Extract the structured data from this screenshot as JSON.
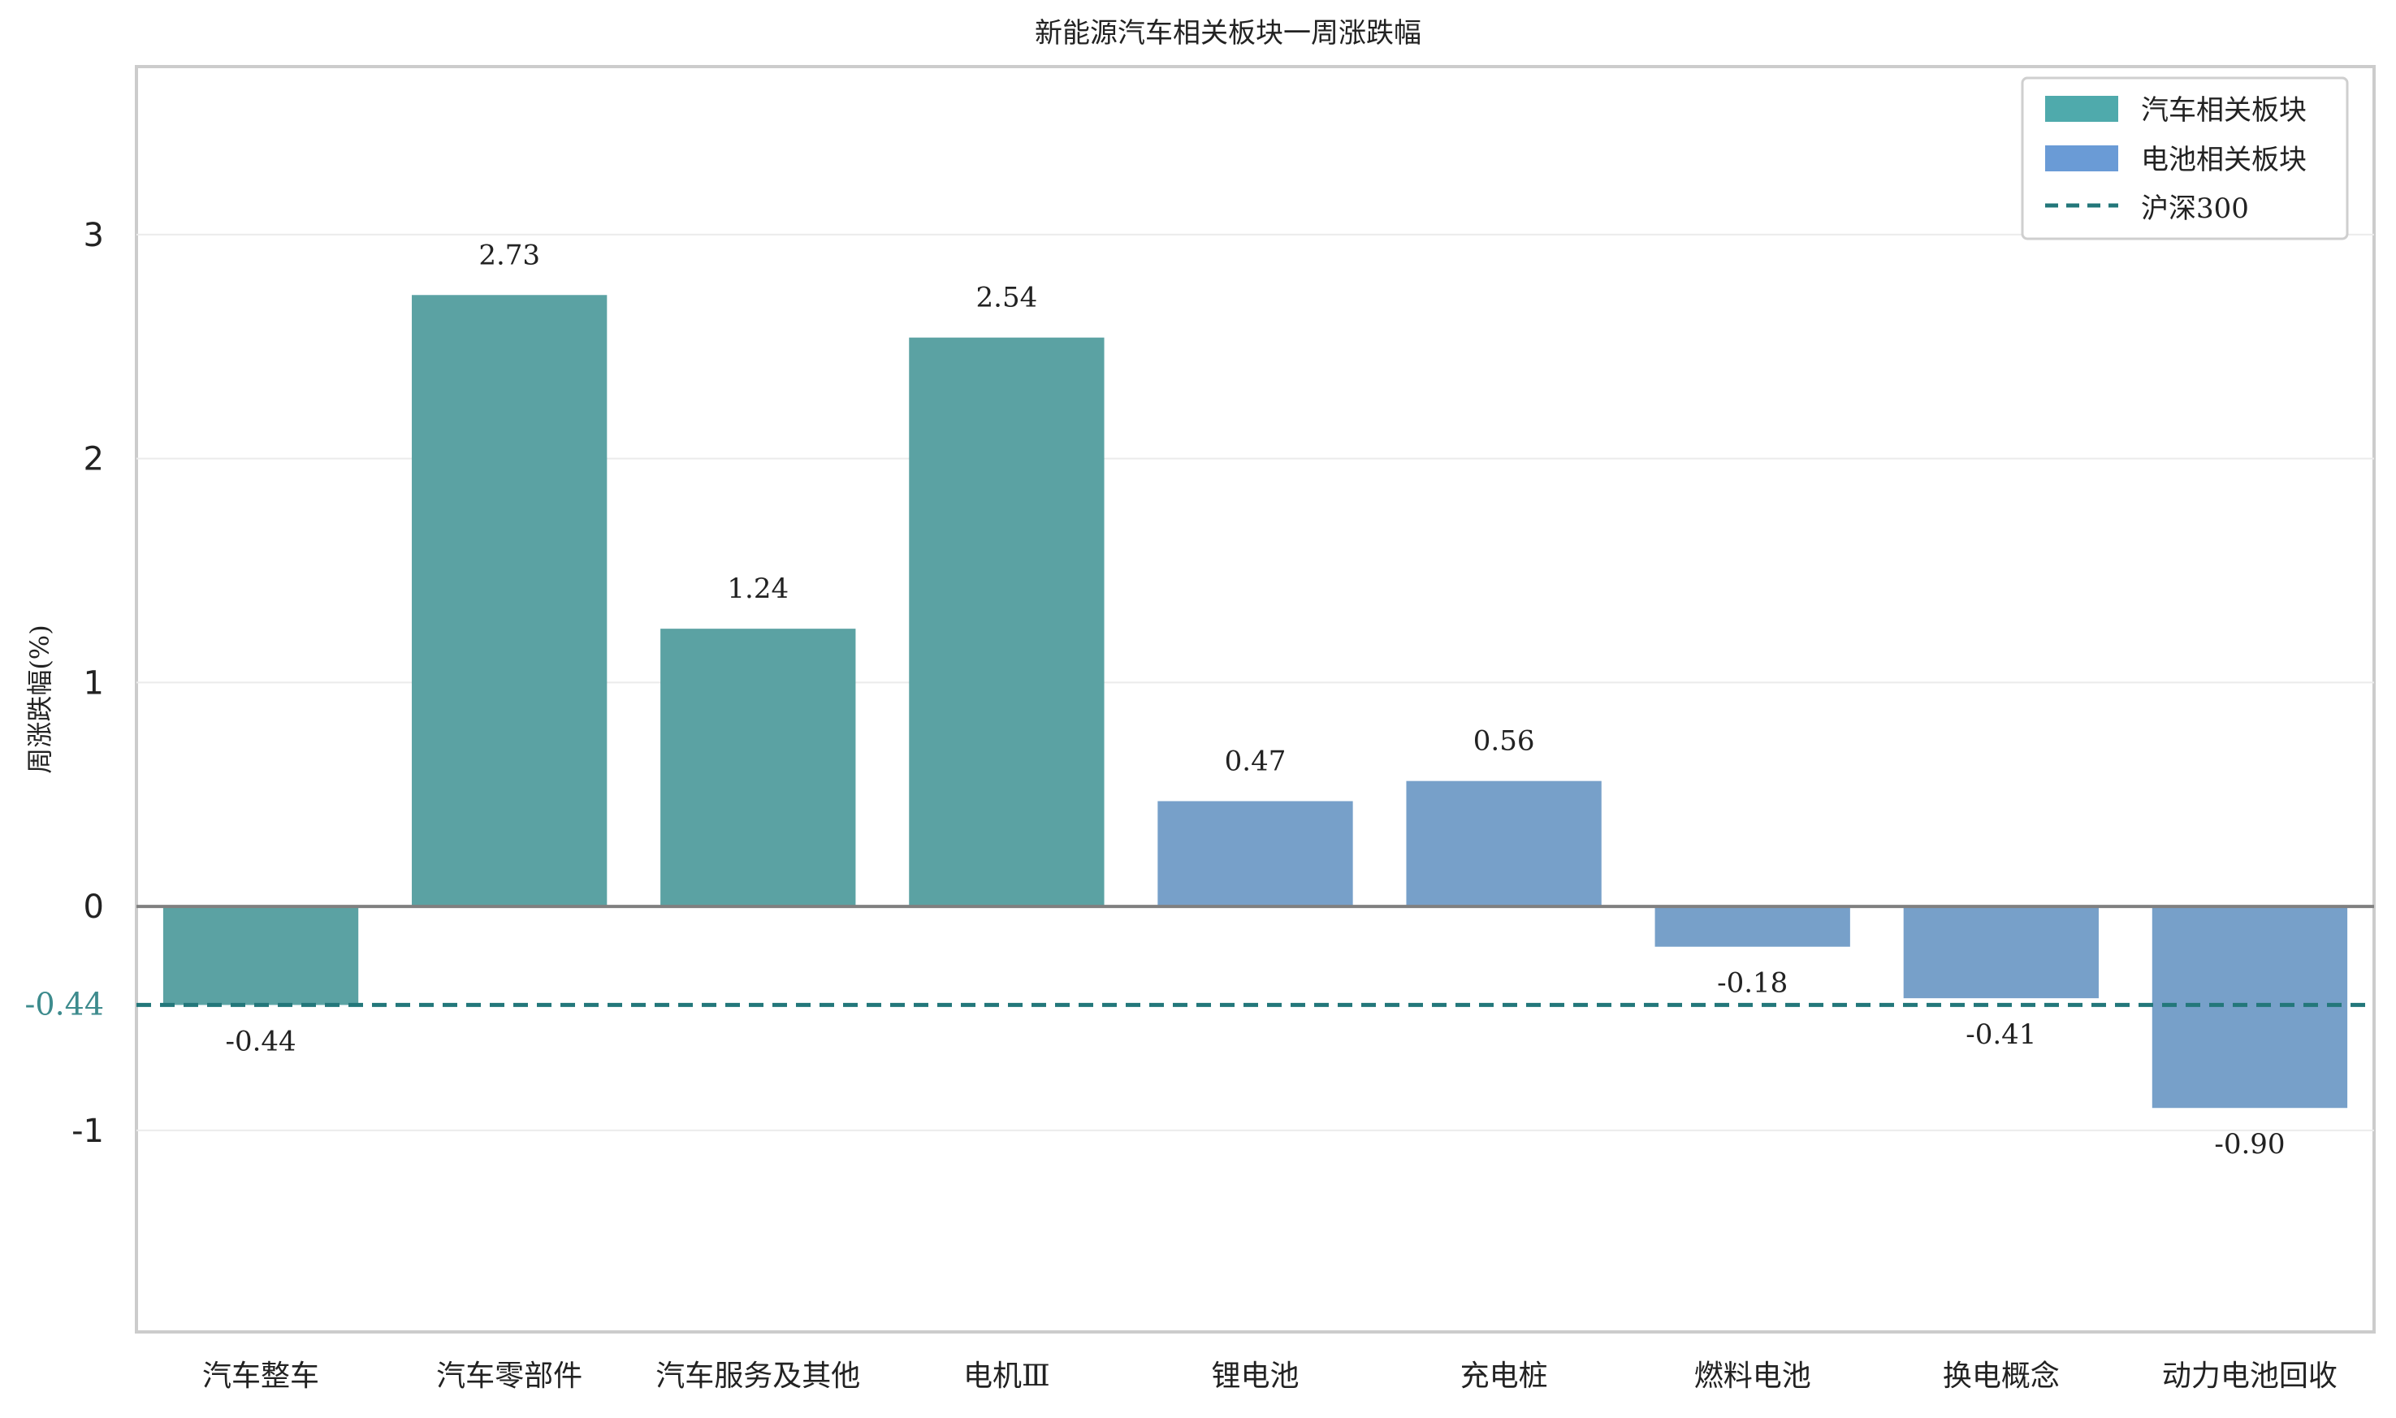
{
  "chart_data": {
    "type": "bar",
    "title": "新能源汽车相关板块一周涨跌幅",
    "ylabel": "周涨跌幅(%)",
    "xlabel": "",
    "ylim": [
      -1.9,
      3.75
    ],
    "yticks": [
      -1,
      0,
      1,
      2,
      3
    ],
    "categories": [
      "汽车整车",
      "汽车零部件",
      "汽车服务及其他",
      "电机Ⅲ",
      "锂电池",
      "充电桩",
      "燃料电池",
      "换电概念",
      "动力电池回收"
    ],
    "values": [
      -0.44,
      2.73,
      1.24,
      2.54,
      0.47,
      0.56,
      -0.18,
      -0.41,
      -0.9
    ],
    "value_labels": [
      "-0.44",
      "2.73",
      "1.24",
      "2.54",
      "0.47",
      "0.56",
      "-0.18",
      "-0.41",
      "-0.90"
    ],
    "groups": [
      "auto",
      "auto",
      "auto",
      "auto",
      "battery",
      "battery",
      "battery",
      "battery",
      "battery"
    ],
    "series": [
      {
        "name": "汽车相关板块",
        "key": "auto",
        "color": "#5ba2a3"
      },
      {
        "name": "电池相关板块",
        "key": "battery",
        "color": "#77a0c9"
      }
    ],
    "legend_colors": {
      "auto": "#4faaac",
      "battery": "#6a9bd6"
    },
    "reference_line": {
      "name": "沪深300",
      "value": -0.44,
      "label": "-0.44",
      "color": "#23777a",
      "style": "dashed"
    },
    "legend_position": "top-right",
    "grid": "horizontal"
  }
}
